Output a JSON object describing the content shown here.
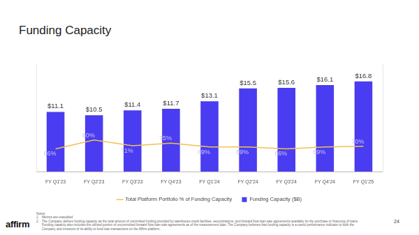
{
  "chart_data": {
    "type": "bar",
    "title": "Funding Capacity",
    "categories": [
      "FY Q1'23",
      "FY Q2'23",
      "FY Q3'23",
      "FY Q4'23",
      "FY Q1'24",
      "FY Q2'24",
      "FY Q3'24",
      "FY Q4'24",
      "FY Q1'25"
    ],
    "series": [
      {
        "name": "Funding Capacity ($B)",
        "type": "bar",
        "color": "#4a3cf0",
        "values": [
          11.1,
          10.5,
          11.4,
          11.7,
          13.1,
          15.5,
          15.6,
          16.1,
          16.8
        ],
        "value_labels": [
          "$11.1",
          "$10.5",
          "$11.4",
          "$11.7",
          "$13.1",
          "$15.5",
          "$15.6",
          "$16.1",
          "$16.8"
        ]
      },
      {
        "name": "Total Platform Portfolio % of Funding Capacity",
        "type": "line",
        "color": "#f2c14e",
        "axis": "y2",
        "values": [
          66,
          80,
          71,
          75,
          69,
          69,
          66,
          69,
          70
        ],
        "value_labels": [
          "66%",
          "80%",
          "71%",
          "75%",
          "69%",
          "69%",
          "66%",
          "69%",
          "70%"
        ]
      }
    ],
    "ylim": [
      0,
      20
    ],
    "y2lim": [
      30,
      200
    ],
    "grid": false,
    "legend": "bottom",
    "data_labels": true,
    "tick_labels": "x"
  },
  "notes_heading": "Notes:",
  "notes": [
    {
      "number": "1.",
      "text": "Metrics are unaudited"
    },
    {
      "number": "2.",
      "text": "The Company defines funding capacity as the total amount of committed funding provided by warehouse credit facilities, securitizations, and forward flow loan sale agreements available for the purchase or financing of loans. Funding capacity also includes the utilized portion of uncommitted forward flow loan sale agreements as of the measurement date. The Company believes that funding capacity is a useful performance indicator to both the Company and investors of its ability to fund loan transactions on the Affirm platform."
    }
  ],
  "logo": "affirm",
  "page_number": "24"
}
